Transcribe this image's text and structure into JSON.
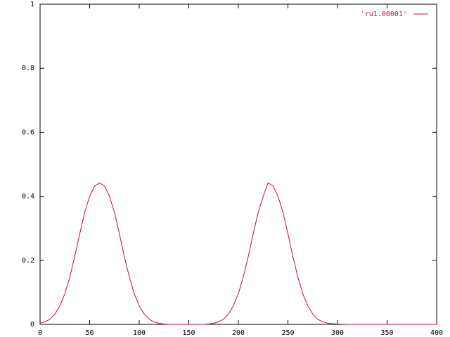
{
  "chart_data": {
    "type": "line",
    "title": "",
    "xlabel": "",
    "ylabel": "",
    "xlim": [
      0,
      400
    ],
    "ylim": [
      0,
      1
    ],
    "x_ticks": [
      0,
      50,
      100,
      150,
      200,
      250,
      300,
      350,
      400
    ],
    "y_ticks": [
      0,
      0.2,
      0.4,
      0.6,
      0.8,
      1
    ],
    "x_tick_labels": [
      "0",
      "50",
      "100",
      "150",
      "200",
      "250",
      "300",
      "350",
      "400"
    ],
    "y_tick_labels": [
      "0",
      "0.2",
      "0.4",
      "0.6",
      "0.8",
      "1"
    ],
    "grid": false,
    "legend_position": "top-right",
    "series": [
      {
        "name": "'ru1.00001'",
        "color": "#cc0066",
        "x": [
          0,
          5,
          10,
          15,
          20,
          25,
          30,
          35,
          40,
          45,
          50,
          55,
          60,
          65,
          70,
          75,
          80,
          85,
          90,
          95,
          100,
          105,
          110,
          115,
          120,
          125,
          130,
          135,
          140,
          145,
          150,
          155,
          160,
          165,
          170,
          175,
          180,
          185,
          190,
          195,
          200,
          205,
          210,
          215,
          220,
          225,
          230,
          235,
          240,
          245,
          250,
          255,
          260,
          265,
          270,
          275,
          280,
          285,
          290,
          295,
          300,
          310,
          320,
          330,
          340,
          350,
          360,
          370,
          380,
          390,
          400
        ],
        "y": [
          0.004,
          0.008,
          0.016,
          0.032,
          0.058,
          0.096,
          0.148,
          0.212,
          0.283,
          0.35,
          0.4,
          0.432,
          0.442,
          0.432,
          0.4,
          0.35,
          0.283,
          0.212,
          0.148,
          0.096,
          0.058,
          0.032,
          0.016,
          0.008,
          0.003,
          0.001,
          0,
          0,
          0,
          0,
          0,
          0,
          0,
          0,
          0.001,
          0.003,
          0.008,
          0.016,
          0.032,
          0.058,
          0.096,
          0.148,
          0.212,
          0.283,
          0.35,
          0.4,
          0.442,
          0.432,
          0.4,
          0.35,
          0.283,
          0.212,
          0.148,
          0.096,
          0.058,
          0.032,
          0.016,
          0.008,
          0.004,
          0.002,
          0.001,
          0,
          0,
          0,
          0,
          0,
          0,
          0,
          0,
          0,
          0
        ]
      }
    ]
  }
}
